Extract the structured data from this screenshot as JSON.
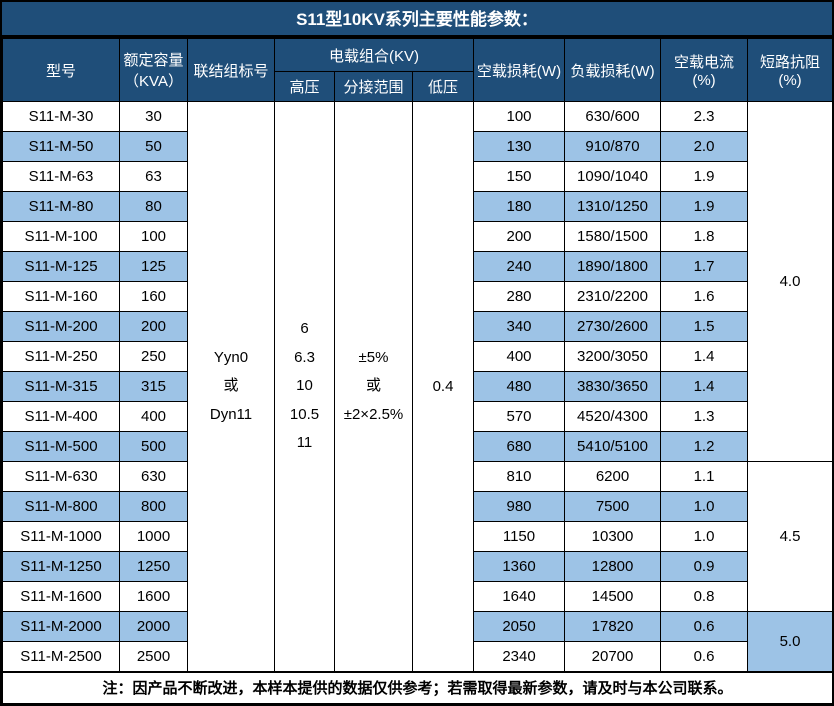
{
  "title": "S11型10KV系列主要性能参数：",
  "columns": {
    "model": "型号",
    "capacity": "额定容量（KVA）",
    "vector_group": "联结组标号",
    "voltage_combo": "电载组合(KV)",
    "hv": "高压",
    "tap_range": "分接范围",
    "lv": "低压",
    "no_load_loss": "空载损耗(W)",
    "load_loss": "负载损耗(W)",
    "no_load_current": "空载电流(%)",
    "impedance": "短路抗阻(%)"
  },
  "merged": {
    "vector_group": "Yyn0\n或\nDyn11",
    "hv": "6\n6.3\n10\n10.5\n11",
    "tap_range": "±5%\n或\n±2×2.5%",
    "lv": "0.4"
  },
  "rows": [
    {
      "model": "S11-M-30",
      "capacity": "30",
      "no_load_loss": "100",
      "load_loss": "630/600",
      "no_load_current": "2.3"
    },
    {
      "model": "S11-M-50",
      "capacity": "50",
      "no_load_loss": "130",
      "load_loss": "910/870",
      "no_load_current": "2.0"
    },
    {
      "model": "S11-M-63",
      "capacity": "63",
      "no_load_loss": "150",
      "load_loss": "1090/1040",
      "no_load_current": "1.9"
    },
    {
      "model": "S11-M-80",
      "capacity": "80",
      "no_load_loss": "180",
      "load_loss": "1310/1250",
      "no_load_current": "1.9"
    },
    {
      "model": "S11-M-100",
      "capacity": "100",
      "no_load_loss": "200",
      "load_loss": "1580/1500",
      "no_load_current": "1.8"
    },
    {
      "model": "S11-M-125",
      "capacity": "125",
      "no_load_loss": "240",
      "load_loss": "1890/1800",
      "no_load_current": "1.7"
    },
    {
      "model": "S11-M-160",
      "capacity": "160",
      "no_load_loss": "280",
      "load_loss": "2310/2200",
      "no_load_current": "1.6"
    },
    {
      "model": "S11-M-200",
      "capacity": "200",
      "no_load_loss": "340",
      "load_loss": "2730/2600",
      "no_load_current": "1.5"
    },
    {
      "model": "S11-M-250",
      "capacity": "250",
      "no_load_loss": "400",
      "load_loss": "3200/3050",
      "no_load_current": "1.4"
    },
    {
      "model": "S11-M-315",
      "capacity": "315",
      "no_load_loss": "480",
      "load_loss": "3830/3650",
      "no_load_current": "1.4"
    },
    {
      "model": "S11-M-400",
      "capacity": "400",
      "no_load_loss": "570",
      "load_loss": "4520/4300",
      "no_load_current": "1.3"
    },
    {
      "model": "S11-M-500",
      "capacity": "500",
      "no_load_loss": "680",
      "load_loss": "5410/5100",
      "no_load_current": "1.2"
    },
    {
      "model": "S11-M-630",
      "capacity": "630",
      "no_load_loss": "810",
      "load_loss": "6200",
      "no_load_current": "1.1"
    },
    {
      "model": "S11-M-800",
      "capacity": "800",
      "no_load_loss": "980",
      "load_loss": "7500",
      "no_load_current": "1.0"
    },
    {
      "model": "S11-M-1000",
      "capacity": "1000",
      "no_load_loss": "1150",
      "load_loss": "10300",
      "no_load_current": "1.0"
    },
    {
      "model": "S11-M-1250",
      "capacity": "1250",
      "no_load_loss": "1360",
      "load_loss": "12800",
      "no_load_current": "0.9"
    },
    {
      "model": "S11-M-1600",
      "capacity": "1600",
      "no_load_loss": "1640",
      "load_loss": "14500",
      "no_load_current": "0.8"
    },
    {
      "model": "S11-M-2000",
      "capacity": "2000",
      "no_load_loss": "2050",
      "load_loss": "17820",
      "no_load_current": "0.6"
    },
    {
      "model": "S11-M-2500",
      "capacity": "2500",
      "no_load_loss": "2340",
      "load_loss": "20700",
      "no_load_current": "0.6"
    }
  ],
  "impedance_groups": [
    {
      "start": 0,
      "span": 12,
      "value": "4.0"
    },
    {
      "start": 12,
      "span": 5,
      "value": "4.5"
    },
    {
      "start": 17,
      "span": 2,
      "value": "5.0"
    }
  ],
  "note": "注：因产品不断改进，本样本提供的数据仅供参考；若需取得最新参数，请及时与本公司联系。",
  "colors": {
    "header_bg": "#1F4E79",
    "row_alt_bg": "#9DC3E6",
    "border": "#000000",
    "header_text": "#FFFFFF",
    "body_text": "#000000"
  }
}
